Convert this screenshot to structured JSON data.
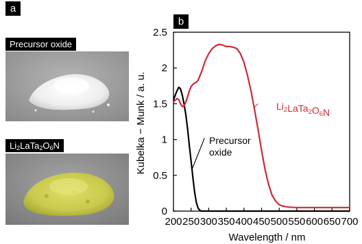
{
  "panels": {
    "a": {
      "tag": "a"
    },
    "b": {
      "tag": "b"
    }
  },
  "photos": [
    {
      "label_parts": [
        [
          "Precursor oxide",
          ""
        ]
      ],
      "powder_color": "#f4f4f4",
      "background": "#9c9c9c"
    },
    {
      "label_parts": [
        [
          "Li",
          ""
        ],
        [
          "2",
          "sub"
        ],
        [
          "LaTa",
          ""
        ],
        [
          "2",
          "sub"
        ],
        [
          "O",
          ""
        ],
        [
          "6",
          "sub"
        ],
        [
          "N",
          ""
        ]
      ],
      "powder_color": "#cfcf55",
      "background": "#8f8f8f"
    }
  ],
  "chart_data": {
    "type": "line",
    "xlabel": "Wavelength / nm",
    "ylabel": "Kubelka − Munk / a. u.",
    "xlim": [
      200,
      700
    ],
    "ylim": [
      0,
      2.5
    ],
    "xticks": [
      "200",
      "250",
      "300",
      "350",
      "400",
      "450",
      "500",
      "550",
      "600",
      "650",
      "700"
    ],
    "yticks": [
      "0",
      "0.5",
      "1",
      "1.5",
      "2",
      "2.5"
    ],
    "grid": false,
    "series": [
      {
        "label_parts": [
          [
            "Precursor",
            ""
          ]
        ],
        "label_parts2": [
          [
            "oxide",
            ""
          ]
        ],
        "color": "#000000",
        "x": [
          200,
          205,
          210,
          215,
          220,
          225,
          230,
          235,
          240,
          245,
          250,
          255,
          260,
          265,
          270,
          275,
          280,
          290,
          300,
          400,
          500,
          600,
          700
        ],
        "y": [
          1.55,
          1.62,
          1.68,
          1.73,
          1.71,
          1.62,
          1.5,
          1.35,
          1.15,
          0.92,
          0.7,
          0.47,
          0.27,
          0.12,
          0.04,
          0.01,
          0.0,
          0.0,
          0.0,
          0.0,
          0.0,
          0.0,
          0.0
        ]
      },
      {
        "label_parts": [
          [
            "Li",
            ""
          ],
          [
            "2",
            "sub"
          ],
          [
            "LaTa",
            ""
          ],
          [
            "2",
            "sub"
          ],
          [
            "O",
            ""
          ],
          [
            "6",
            "sub"
          ],
          [
            "N",
            ""
          ]
        ],
        "color": "#cc2a34",
        "x": [
          200,
          205,
          210,
          215,
          220,
          225,
          230,
          235,
          240,
          245,
          250,
          255,
          260,
          265,
          270,
          280,
          290,
          300,
          310,
          320,
          330,
          340,
          350,
          360,
          370,
          380,
          390,
          400,
          410,
          420,
          430,
          440,
          450,
          460,
          470,
          480,
          490,
          500,
          510,
          520,
          530,
          550,
          600,
          650,
          700
        ],
        "y": [
          1.52,
          1.55,
          1.57,
          1.56,
          1.5,
          1.46,
          1.47,
          1.52,
          1.6,
          1.68,
          1.74,
          1.77,
          1.79,
          1.8,
          1.83,
          1.95,
          2.1,
          2.2,
          2.27,
          2.31,
          2.33,
          2.32,
          2.3,
          2.3,
          2.29,
          2.27,
          2.2,
          2.08,
          1.9,
          1.68,
          1.42,
          1.14,
          0.85,
          0.58,
          0.37,
          0.22,
          0.14,
          0.09,
          0.07,
          0.06,
          0.055,
          0.05,
          0.05,
          0.05,
          0.05
        ]
      }
    ]
  }
}
